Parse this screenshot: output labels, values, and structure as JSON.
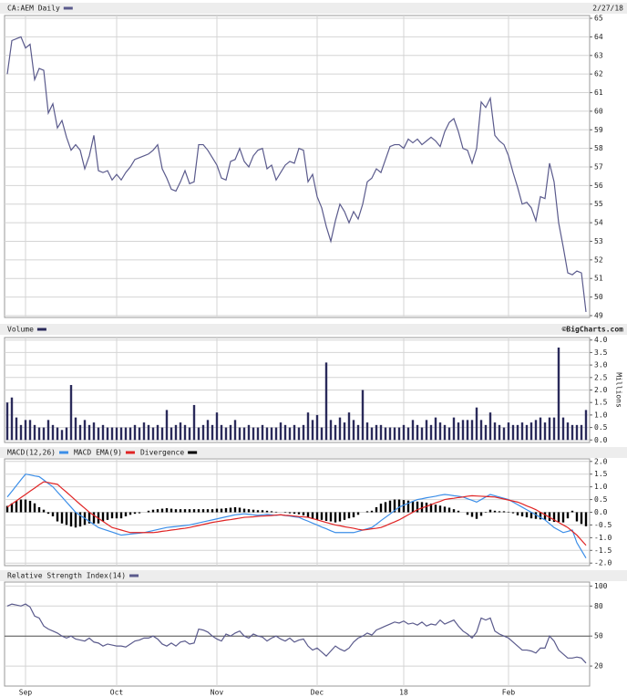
{
  "chart_data": [
    {
      "type": "line",
      "title": "CA:AEM Daily",
      "subtitle": "2/27/18",
      "color": "#5a5a8c",
      "grid": true,
      "ylim": [
        48.9,
        65.15
      ],
      "yticks": [
        49,
        50,
        51,
        52,
        53,
        54,
        55,
        56,
        57,
        58,
        59,
        60,
        61,
        62,
        63,
        64,
        65
      ],
      "values": [
        62.0,
        63.8,
        63.9,
        64.0,
        63.4,
        63.6,
        61.7,
        62.3,
        62.2,
        59.9,
        60.4,
        59.1,
        59.5,
        58.6,
        57.9,
        58.2,
        57.9,
        56.9,
        57.6,
        58.7,
        56.8,
        56.7,
        56.8,
        56.3,
        56.6,
        56.3,
        56.7,
        57.0,
        57.4,
        57.5,
        57.6,
        57.7,
        57.9,
        58.2,
        56.9,
        56.4,
        55.8,
        55.7,
        56.2,
        56.8,
        56.1,
        56.2,
        58.2,
        58.2,
        57.9,
        57.5,
        57.1,
        56.4,
        56.3,
        57.3,
        57.4,
        58.0,
        57.3,
        57.0,
        57.6,
        57.9,
        58.0,
        56.9,
        57.1,
        56.3,
        56.7,
        57.1,
        57.3,
        57.2,
        58.0,
        57.9,
        56.2,
        56.6,
        55.4,
        54.8,
        53.8,
        53.0,
        54.1,
        55.0,
        54.6,
        54.0,
        54.6,
        54.2,
        55.0,
        56.2,
        56.4,
        56.9,
        56.7,
        57.4,
        58.1,
        58.2,
        58.2,
        58.0,
        58.5,
        58.3,
        58.5,
        58.2,
        58.4,
        58.6,
        58.4,
        58.1,
        58.9,
        59.4,
        59.6,
        58.9,
        58.0,
        57.9,
        57.2,
        58.0,
        60.5,
        60.2,
        60.7,
        58.7,
        58.4,
        58.2,
        57.6,
        56.7,
        55.9,
        55.0,
        55.1,
        54.8,
        54.1,
        55.4,
        55.3,
        57.2,
        56.2,
        54.0,
        52.7,
        51.3,
        51.2,
        51.4,
        51.3,
        49.2
      ]
    },
    {
      "type": "bar",
      "title": "Volume",
      "source": "©BigCharts.com",
      "ylabel": "Millions",
      "color": "#2a2a5a",
      "grid": true,
      "ylim": [
        -0.1,
        4.1
      ],
      "yticks": [
        {
          "value": 0,
          "label": "0.0"
        },
        0.5,
        {
          "value": 1,
          "label": "1.0"
        },
        1.5,
        {
          "value": 2,
          "label": "2.0"
        },
        2.5,
        {
          "value": 3,
          "label": "3.0"
        },
        3.5,
        {
          "value": 4,
          "label": "4.0"
        }
      ],
      "values": [
        1.5,
        1.7,
        0.9,
        0.6,
        0.8,
        0.8,
        0.6,
        0.5,
        0.5,
        0.8,
        0.6,
        0.5,
        0.4,
        0.5,
        2.2,
        0.9,
        0.6,
        0.8,
        0.6,
        0.7,
        0.5,
        0.6,
        0.5,
        0.5,
        0.5,
        0.5,
        0.5,
        0.5,
        0.6,
        0.5,
        0.7,
        0.6,
        0.5,
        0.6,
        0.5,
        1.2,
        0.5,
        0.6,
        0.7,
        0.6,
        0.5,
        1.4,
        0.5,
        0.6,
        0.8,
        0.6,
        1.1,
        0.6,
        0.5,
        0.6,
        0.8,
        0.5,
        0.5,
        0.6,
        0.5,
        0.5,
        0.6,
        0.5,
        0.5,
        0.5,
        0.7,
        0.6,
        0.5,
        0.6,
        0.5,
        0.6,
        1.1,
        0.8,
        1.0,
        0.5,
        3.1,
        0.8,
        0.6,
        0.9,
        0.7,
        1.1,
        0.8,
        0.6,
        2.0,
        0.7,
        0.5,
        0.6,
        0.6,
        0.5,
        0.5,
        0.5,
        0.5,
        0.6,
        0.5,
        0.8,
        0.6,
        0.5,
        0.8,
        0.6,
        0.9,
        0.7,
        0.6,
        0.5,
        0.9,
        0.7,
        0.8,
        0.8,
        0.8,
        1.3,
        0.8,
        0.6,
        1.1,
        0.7,
        0.6,
        0.5,
        0.7,
        0.6,
        0.6,
        0.7,
        0.6,
        0.7,
        0.8,
        0.9,
        0.7,
        0.9,
        0.9,
        3.7,
        0.9,
        0.7,
        0.6,
        0.6,
        0.6,
        1.2
      ]
    },
    {
      "type": "combo",
      "grid": true,
      "ylim": [
        -2.1,
        2.1
      ],
      "yticks": [
        {
          "value": -2,
          "label": "-2.0"
        },
        -1.5,
        {
          "value": -1,
          "label": "-1.0"
        },
        -0.5,
        {
          "value": 0,
          "label": "0.0"
        },
        0.5,
        {
          "value": 1,
          "label": "1.0"
        },
        1.5,
        {
          "value": 2,
          "label": "2.0"
        }
      ],
      "series": [
        {
          "name": "MACD(12,26)",
          "color": "#3b8ee8",
          "kind": "line",
          "values": [
            0.6,
            0.82,
            1.05,
            1.28,
            1.5,
            1.47,
            1.43,
            1.4,
            1.27,
            1.13,
            1.0,
            0.8,
            0.6,
            0.4,
            0.2,
            0.0,
            -0.12,
            -0.24,
            -0.36,
            -0.48,
            -0.6,
            -0.66,
            -0.72,
            -0.78,
            -0.84,
            -0.9,
            -0.88,
            -0.86,
            -0.84,
            -0.82,
            -0.8,
            -0.76,
            -0.72,
            -0.68,
            -0.64,
            -0.6,
            -0.58,
            -0.56,
            -0.54,
            -0.52,
            -0.5,
            -0.46,
            -0.42,
            -0.38,
            -0.34,
            -0.3,
            -0.26,
            -0.22,
            -0.18,
            -0.14,
            -0.1,
            -0.08,
            -0.06,
            -0.08,
            -0.1,
            -0.12,
            -0.1,
            -0.08,
            -0.1,
            -0.12,
            -0.1,
            -0.13,
            -0.15,
            -0.18,
            -0.2,
            -0.28,
            -0.35,
            -0.43,
            -0.5,
            -0.58,
            -0.65,
            -0.73,
            -0.8,
            -0.8,
            -0.8,
            -0.8,
            -0.8,
            -0.75,
            -0.7,
            -0.65,
            -0.6,
            -0.47,
            -0.33,
            -0.2,
            -0.07,
            0.07,
            0.2,
            0.28,
            0.35,
            0.43,
            0.5,
            0.53,
            0.57,
            0.6,
            0.63,
            0.67,
            0.7,
            0.68,
            0.65,
            0.63,
            0.6,
            0.53,
            0.47,
            0.4,
            0.5,
            0.6,
            0.7,
            0.65,
            0.6,
            0.55,
            0.5,
            0.4,
            0.3,
            0.2,
            0.1,
            0.0,
            -0.1,
            -0.2,
            -0.3,
            -0.45,
            -0.6,
            -0.7,
            -0.8,
            -0.75,
            -0.7,
            -1.2,
            -1.5,
            -1.8
          ]
        },
        {
          "name": "MACD EMA(9)",
          "color": "#e02424",
          "kind": "line",
          "values": [
            0.2,
            0.33,
            0.45,
            0.58,
            0.7,
            0.83,
            0.95,
            1.08,
            1.2,
            1.17,
            1.13,
            1.1,
            0.94,
            0.79,
            0.63,
            0.47,
            0.31,
            0.16,
            0.0,
            -0.12,
            -0.24,
            -0.36,
            -0.48,
            -0.6,
            -0.65,
            -0.7,
            -0.75,
            -0.8,
            -0.8,
            -0.8,
            -0.8,
            -0.8,
            -0.8,
            -0.78,
            -0.75,
            -0.73,
            -0.7,
            -0.68,
            -0.65,
            -0.63,
            -0.6,
            -0.56,
            -0.52,
            -0.48,
            -0.44,
            -0.4,
            -0.37,
            -0.34,
            -0.31,
            -0.29,
            -0.26,
            -0.23,
            -0.2,
            -0.19,
            -0.18,
            -0.16,
            -0.15,
            -0.14,
            -0.13,
            -0.11,
            -0.1,
            -0.12,
            -0.13,
            -0.15,
            -0.17,
            -0.18,
            -0.2,
            -0.25,
            -0.3,
            -0.35,
            -0.4,
            -0.45,
            -0.5,
            -0.53,
            -0.57,
            -0.6,
            -0.63,
            -0.67,
            -0.7,
            -0.68,
            -0.65,
            -0.63,
            -0.6,
            -0.53,
            -0.45,
            -0.38,
            -0.3,
            -0.2,
            -0.1,
            0.0,
            0.1,
            0.17,
            0.23,
            0.3,
            0.37,
            0.43,
            0.5,
            0.53,
            0.55,
            0.58,
            0.6,
            0.63,
            0.65,
            0.64,
            0.63,
            0.62,
            0.61,
            0.6,
            0.56,
            0.52,
            0.48,
            0.44,
            0.4,
            0.33,
            0.25,
            0.18,
            0.1,
            0.0,
            -0.1,
            -0.2,
            -0.3,
            -0.4,
            -0.5,
            -0.6,
            -0.75,
            -0.9,
            -1.1,
            -1.3
          ]
        },
        {
          "name": "Divergence",
          "color": "#000000",
          "kind": "bar",
          "values": [
            0.25,
            0.35,
            0.45,
            0.5,
            0.5,
            0.45,
            0.35,
            0.2,
            0.1,
            -0.06,
            -0.16,
            -0.36,
            -0.44,
            -0.5,
            -0.56,
            -0.6,
            -0.56,
            -0.5,
            -0.44,
            -0.44,
            -0.44,
            -0.36,
            -0.3,
            -0.24,
            -0.24,
            -0.24,
            -0.16,
            -0.1,
            -0.06,
            -0.04,
            0,
            0.06,
            0.1,
            0.12,
            0.14,
            0.16,
            0.14,
            0.12,
            0.12,
            0.12,
            0.12,
            0.12,
            0.12,
            0.12,
            0.12,
            0.12,
            0.14,
            0.14,
            0.16,
            0.18,
            0.2,
            0.18,
            0.14,
            0.12,
            0.1,
            0.08,
            0.08,
            0.06,
            0.04,
            0.02,
            0,
            -0.02,
            -0.04,
            -0.06,
            -0.08,
            -0.12,
            -0.2,
            -0.26,
            -0.3,
            -0.3,
            -0.34,
            -0.36,
            -0.4,
            -0.36,
            -0.3,
            -0.24,
            -0.2,
            -0.1,
            0,
            0.04,
            0.06,
            0.2,
            0.34,
            0.4,
            0.46,
            0.5,
            0.5,
            0.48,
            0.46,
            0.44,
            0.42,
            0.4,
            0.38,
            0.34,
            0.3,
            0.26,
            0.22,
            0.18,
            0.12,
            0.06,
            0,
            -0.1,
            -0.18,
            -0.26,
            -0.14,
            -0.02,
            0.1,
            0.06,
            0.04,
            0.04,
            0.02,
            -0.04,
            -0.12,
            -0.16,
            -0.2,
            -0.24,
            -0.26,
            -0.28,
            -0.3,
            -0.34,
            -0.38,
            -0.38,
            -0.4,
            -0.24,
            0.06,
            -0.36,
            -0.46,
            -0.55
          ]
        }
      ]
    },
    {
      "type": "line",
      "title": "Relative Strength Index(14)",
      "color": "#5a5a8c",
      "grid": true,
      "hline": 50,
      "ylim": [
        0,
        104
      ],
      "yticks": [
        20,
        50,
        80,
        100
      ],
      "categories": [
        null,
        null,
        null,
        null,
        "Sep",
        null,
        null,
        null,
        null,
        null,
        null,
        null,
        null,
        null,
        null,
        null,
        null,
        null,
        null,
        null,
        null,
        null,
        null,
        null,
        "Oct",
        null,
        null,
        null,
        null,
        null,
        null,
        null,
        null,
        null,
        null,
        null,
        null,
        null,
        null,
        null,
        null,
        null,
        null,
        null,
        null,
        null,
        "Nov",
        null,
        null,
        null,
        null,
        null,
        null,
        null,
        null,
        null,
        null,
        null,
        null,
        null,
        null,
        null,
        null,
        null,
        null,
        null,
        null,
        null,
        "Dec",
        null,
        null,
        null,
        null,
        null,
        null,
        null,
        null,
        null,
        null,
        null,
        null,
        null,
        null,
        null,
        null,
        null,
        null,
        "18",
        null,
        null,
        null,
        null,
        null,
        null,
        null,
        null,
        null,
        null,
        null,
        null,
        null,
        null,
        null,
        null,
        null,
        null,
        null,
        null,
        null,
        null,
        "Feb",
        null,
        null,
        null,
        null,
        null,
        null,
        null,
        null,
        null,
        null,
        null,
        null,
        null,
        null,
        null,
        null,
        null
      ],
      "values": [
        80,
        82,
        81,
        80,
        82,
        79,
        70,
        68,
        60,
        57,
        55,
        53,
        50,
        48,
        50,
        47,
        46,
        45,
        48,
        44,
        43,
        40,
        42,
        41,
        40,
        40,
        39,
        42,
        45,
        46,
        48,
        48,
        50,
        47,
        42,
        40,
        43,
        40,
        44,
        45,
        42,
        43,
        57,
        56,
        54,
        50,
        47,
        45,
        52,
        50,
        53,
        55,
        50,
        48,
        52,
        50,
        49,
        45,
        48,
        50,
        47,
        45,
        48,
        44,
        46,
        47,
        40,
        36,
        38,
        34,
        30,
        35,
        40,
        37,
        35,
        38,
        44,
        48,
        50,
        53,
        51,
        56,
        58,
        60,
        62,
        64,
        63,
        65,
        62,
        63,
        61,
        64,
        60,
        62,
        61,
        66,
        62,
        64,
        66,
        60,
        55,
        52,
        48,
        54,
        68,
        66,
        68,
        55,
        52,
        50,
        48,
        44,
        40,
        36,
        36,
        35,
        33,
        38,
        38,
        50,
        45,
        36,
        32,
        28,
        28,
        29,
        28,
        23
      ]
    }
  ]
}
